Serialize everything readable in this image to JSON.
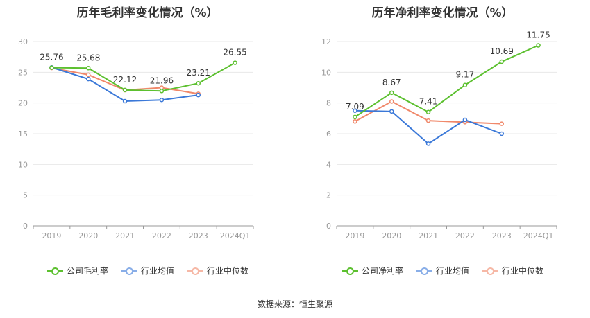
{
  "source_text": "数据来源：恒生聚源",
  "colors": {
    "company": "#5cc02f",
    "avg": "#3a78d8",
    "median": "#f0886a"
  },
  "chart_data": [
    {
      "type": "line",
      "title": "历年毛利率变化情况（%）",
      "categories": [
        "2019",
        "2020",
        "2021",
        "2022",
        "2023",
        "2024Q1"
      ],
      "ylim": [
        0,
        30
      ],
      "yticks": [
        "0",
        "5",
        "10",
        "15",
        "20",
        "25",
        "30"
      ],
      "series": [
        {
          "name": "公司毛利率",
          "key": "company",
          "values": [
            25.76,
            25.68,
            22.12,
            21.96,
            23.21,
            26.55
          ],
          "labels": [
            "25.76",
            "25.68",
            "22.12",
            "21.96",
            "23.21",
            "26.55"
          ]
        },
        {
          "name": "行业均值",
          "key": "avg",
          "values": [
            25.8,
            23.9,
            20.3,
            20.5,
            21.3,
            null
          ]
        },
        {
          "name": "行业中位数",
          "key": "median",
          "values": [
            25.7,
            24.6,
            22.1,
            22.5,
            21.5,
            null
          ]
        }
      ]
    },
    {
      "type": "line",
      "title": "历年净利率变化情况（%）",
      "categories": [
        "2019",
        "2020",
        "2021",
        "2022",
        "2023",
        "2024Q1"
      ],
      "ylim": [
        0,
        12
      ],
      "yticks": [
        "0",
        "2",
        "4",
        "6",
        "8",
        "10",
        "12"
      ],
      "series": [
        {
          "name": "公司净利率",
          "key": "company",
          "values": [
            7.09,
            8.67,
            7.41,
            9.17,
            10.69,
            11.75
          ],
          "labels": [
            "7.09",
            "8.67",
            "7.41",
            "9.17",
            "10.69",
            "11.75"
          ]
        },
        {
          "name": "行业均值",
          "key": "avg",
          "values": [
            7.5,
            7.45,
            5.35,
            6.9,
            6.0,
            null
          ]
        },
        {
          "name": "行业中位数",
          "key": "median",
          "values": [
            6.8,
            8.1,
            6.85,
            6.75,
            6.65,
            null
          ]
        }
      ]
    }
  ]
}
